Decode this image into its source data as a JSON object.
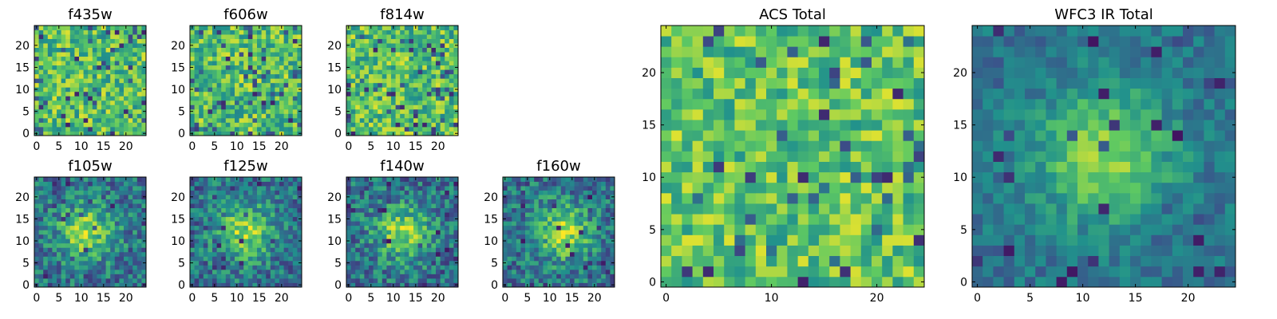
{
  "figure": {
    "description_type": "grid of heatmap panels"
  },
  "chart_data": [
    {
      "type": "heatmap",
      "title": "f435w",
      "grid_size": [
        25,
        25
      ],
      "xlim": [
        -0.5,
        24.5
      ],
      "ylim": [
        -0.5,
        24.5
      ],
      "xticks": [
        0,
        5,
        10,
        15,
        20
      ],
      "yticks": [
        0,
        5,
        10,
        15,
        20
      ],
      "colormap": "viridis",
      "pattern": "noise",
      "seed": 11
    },
    {
      "type": "heatmap",
      "title": "f606w",
      "grid_size": [
        25,
        25
      ],
      "xlim": [
        -0.5,
        24.5
      ],
      "ylim": [
        -0.5,
        24.5
      ],
      "xticks": [
        0,
        5,
        10,
        15,
        20
      ],
      "yticks": [
        0,
        5,
        10,
        15,
        20
      ],
      "colormap": "viridis",
      "pattern": "noise",
      "seed": 23
    },
    {
      "type": "heatmap",
      "title": "f814w",
      "grid_size": [
        25,
        25
      ],
      "xlim": [
        -0.5,
        24.5
      ],
      "ylim": [
        -0.5,
        24.5
      ],
      "xticks": [
        0,
        5,
        10,
        15,
        20
      ],
      "yticks": [
        0,
        5,
        10,
        15,
        20
      ],
      "colormap": "viridis",
      "pattern": "noise",
      "seed": 37
    },
    {
      "type": "heatmap",
      "title": "f105w",
      "grid_size": [
        25,
        25
      ],
      "xlim": [
        -0.5,
        24.5
      ],
      "ylim": [
        -0.5,
        24.5
      ],
      "xticks": [
        0,
        5,
        10,
        15,
        20
      ],
      "yticks": [
        0,
        5,
        10,
        15,
        20
      ],
      "colormap": "viridis",
      "pattern": "blob",
      "blob_center": [
        11,
        12
      ],
      "seed": 41
    },
    {
      "type": "heatmap",
      "title": "f125w",
      "grid_size": [
        25,
        25
      ],
      "xlim": [
        -0.5,
        24.5
      ],
      "ylim": [
        -0.5,
        24.5
      ],
      "xticks": [
        0,
        5,
        10,
        15,
        20
      ],
      "yticks": [
        0,
        5,
        10,
        15,
        20
      ],
      "colormap": "viridis",
      "pattern": "blob",
      "blob_center": [
        12,
        12
      ],
      "seed": 53
    },
    {
      "type": "heatmap",
      "title": "f140w",
      "grid_size": [
        25,
        25
      ],
      "xlim": [
        -0.5,
        24.5
      ],
      "ylim": [
        -0.5,
        24.5
      ],
      "xticks": [
        0,
        5,
        10,
        15,
        20
      ],
      "yticks": [
        0,
        5,
        10,
        15,
        20
      ],
      "colormap": "viridis",
      "pattern": "blob",
      "blob_center": [
        12,
        12
      ],
      "seed": 67
    },
    {
      "type": "heatmap",
      "title": "f160w",
      "grid_size": [
        25,
        25
      ],
      "xlim": [
        -0.5,
        24.5
      ],
      "ylim": [
        -0.5,
        24.5
      ],
      "xticks": [
        0,
        5,
        10,
        15,
        20
      ],
      "yticks": [
        0,
        5,
        10,
        15,
        20
      ],
      "colormap": "viridis",
      "pattern": "blob",
      "blob_center": [
        13,
        12
      ],
      "seed": 79
    },
    {
      "type": "heatmap",
      "title": "ACS Total",
      "grid_size": [
        25,
        25
      ],
      "xlim": [
        -0.5,
        24.5
      ],
      "ylim": [
        -0.5,
        24.5
      ],
      "xticks": [
        0,
        10,
        20
      ],
      "yticks": [
        0,
        5,
        10,
        15,
        20
      ],
      "colormap": "viridis",
      "pattern": "noise-bright",
      "seed": 97
    },
    {
      "type": "heatmap",
      "title": "WFC3 IR Total",
      "grid_size": [
        25,
        25
      ],
      "xlim": [
        -0.5,
        24.5
      ],
      "ylim": [
        -0.5,
        24.5
      ],
      "xticks": [
        0,
        5,
        10,
        15,
        20
      ],
      "yticks": [
        0,
        5,
        10,
        15,
        20
      ],
      "colormap": "viridis",
      "pattern": "blob-smooth",
      "blob_center": [
        12,
        12
      ],
      "seed": 113
    }
  ],
  "colors": {
    "viridis_stops": [
      "#440154",
      "#3b528b",
      "#21918c",
      "#5ec962",
      "#fde725"
    ]
  }
}
